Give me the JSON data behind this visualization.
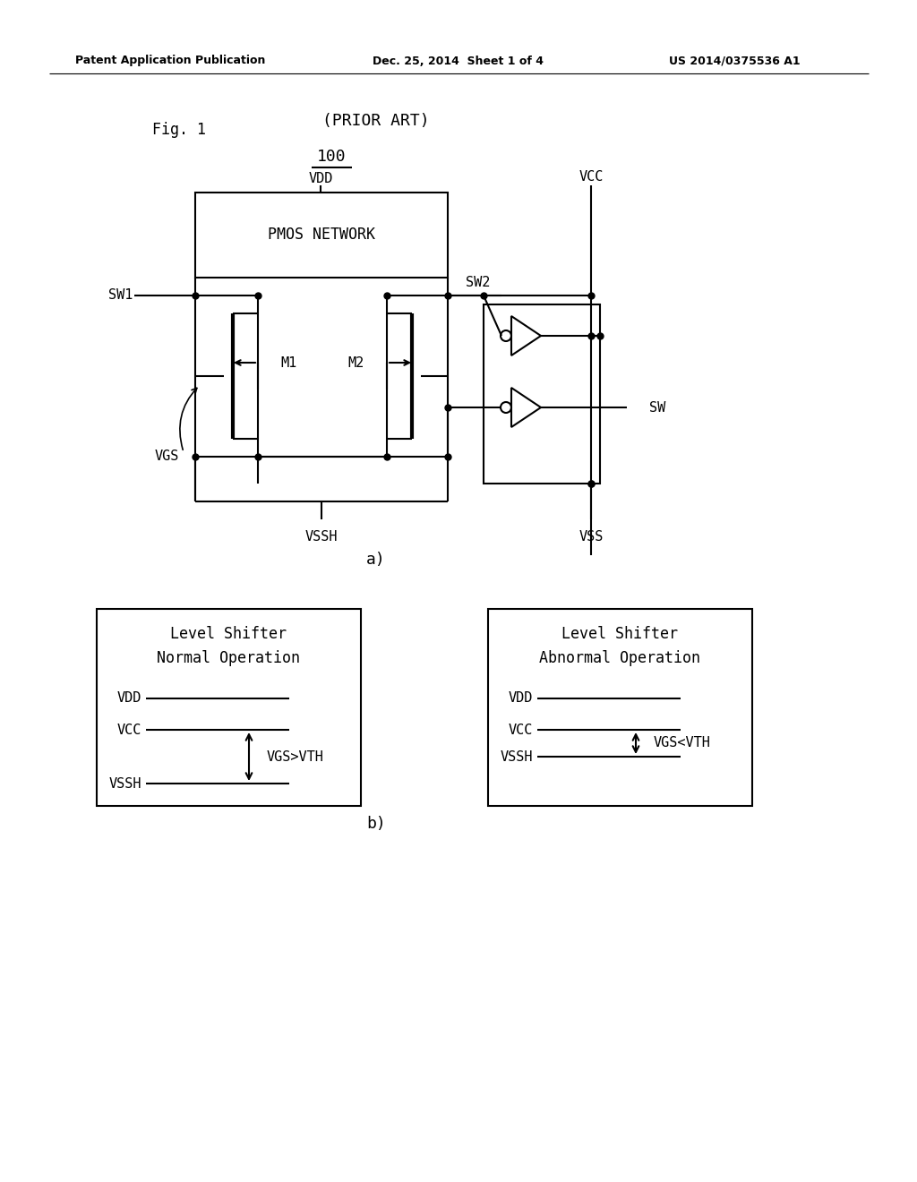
{
  "bg_color": "#ffffff",
  "header_left": "Patent Application Publication",
  "header_mid": "Dec. 25, 2014  Sheet 1 of 4",
  "header_right": "US 2014/0375536 A1"
}
